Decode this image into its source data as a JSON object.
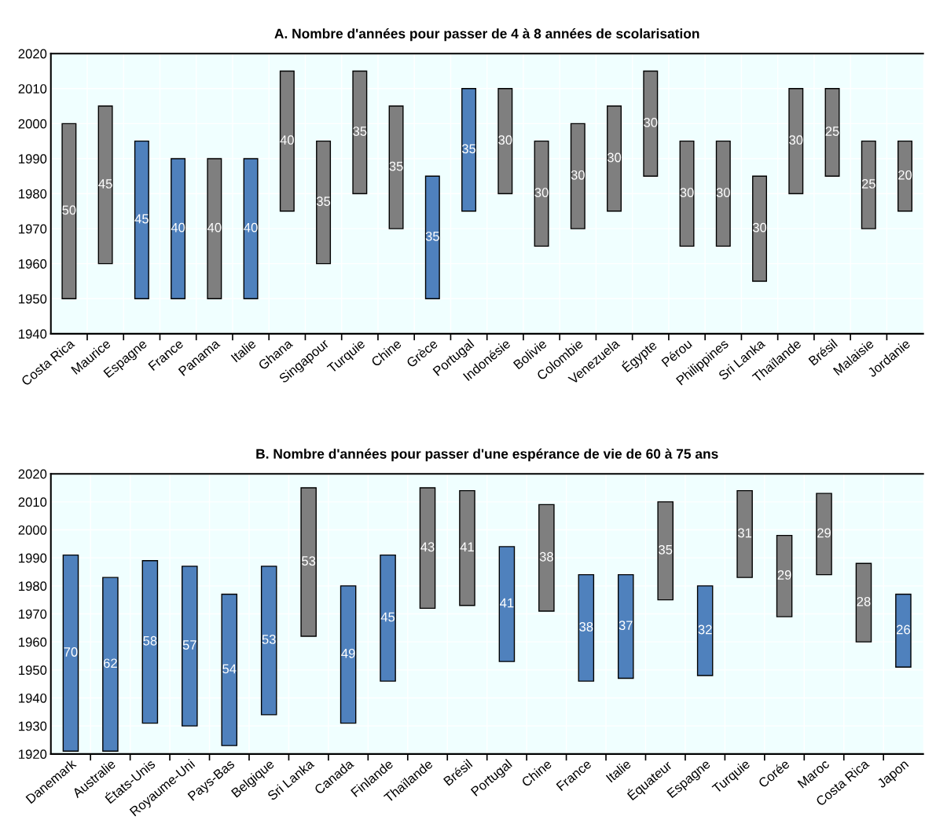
{
  "chart_data": [
    {
      "type": "bar",
      "title": "A. Nombre d'années pour passer de 4 à 8 années de scolarisation",
      "categories": [
        "Costa Rica",
        "Maurice",
        "Espagne",
        "France",
        "Panama",
        "Italie",
        "Ghana",
        "Singapour",
        "Turquie",
        "Chine",
        "Grèce",
        "Portugal",
        "Indonésie",
        "Bolivie",
        "Colombie",
        "Venezuela",
        "Égypte",
        "Pérou",
        "Philippines",
        "Sri Lanka",
        "Thaïlande",
        "Brésil",
        "Malaisie",
        "Jordanie"
      ],
      "base": [
        1950,
        1960,
        1950,
        1950,
        1950,
        1950,
        1975,
        1960,
        1980,
        1970,
        1950,
        1975,
        1980,
        1965,
        1970,
        1975,
        1985,
        1965,
        1965,
        1955,
        1980,
        1985,
        1970,
        1975
      ],
      "values": [
        50,
        45,
        45,
        40,
        40,
        40,
        40,
        35,
        35,
        35,
        35,
        35,
        30,
        30,
        30,
        30,
        30,
        30,
        30,
        30,
        30,
        25,
        25,
        20
      ],
      "colors": [
        "#7f7f7f",
        "#7f7f7f",
        "#4f81bd",
        "#4f81bd",
        "#7f7f7f",
        "#4f81bd",
        "#7f7f7f",
        "#7f7f7f",
        "#7f7f7f",
        "#7f7f7f",
        "#4f81bd",
        "#4f81bd",
        "#7f7f7f",
        "#7f7f7f",
        "#7f7f7f",
        "#7f7f7f",
        "#7f7f7f",
        "#7f7f7f",
        "#7f7f7f",
        "#7f7f7f",
        "#7f7f7f",
        "#7f7f7f",
        "#7f7f7f",
        "#7f7f7f"
      ],
      "ylim": [
        1940,
        2020
      ],
      "yticks": [
        1940,
        1950,
        1960,
        1970,
        1980,
        1990,
        2000,
        2010,
        2020
      ],
      "grid": true,
      "data_labels": true
    },
    {
      "type": "bar",
      "title": "B. Nombre d'années pour passer d'une espérance de vie de 60 à 75 ans",
      "categories": [
        "Danemark",
        "Australie",
        "États-Unis",
        "Royaume-Uni",
        "Pays-Bas",
        "Belgique",
        "Sri Lanka",
        "Canada",
        "Finlande",
        "Thaïlande",
        "Brésil",
        "Portugal",
        "Chine",
        "France",
        "Italie",
        "Équateur",
        "Espagne",
        "Turquie",
        "Corée",
        "Maroc",
        "Costa Rica",
        "Japon"
      ],
      "base": [
        1921,
        1921,
        1931,
        1930,
        1923,
        1934,
        1962,
        1931,
        1946,
        1972,
        1973,
        1953,
        1971,
        1946,
        1947,
        1975,
        1948,
        1983,
        1969,
        1984,
        1960,
        1951
      ],
      "values": [
        70,
        62,
        58,
        57,
        54,
        53,
        53,
        49,
        45,
        43,
        41,
        41,
        38,
        38,
        37,
        35,
        32,
        31,
        29,
        29,
        28,
        26
      ],
      "colors": [
        "#4f81bd",
        "#4f81bd",
        "#4f81bd",
        "#4f81bd",
        "#4f81bd",
        "#4f81bd",
        "#7f7f7f",
        "#4f81bd",
        "#4f81bd",
        "#7f7f7f",
        "#7f7f7f",
        "#4f81bd",
        "#7f7f7f",
        "#4f81bd",
        "#4f81bd",
        "#7f7f7f",
        "#4f81bd",
        "#7f7f7f",
        "#7f7f7f",
        "#7f7f7f",
        "#7f7f7f",
        "#4f81bd"
      ],
      "ylim": [
        1920,
        2020
      ],
      "yticks": [
        1920,
        1930,
        1940,
        1950,
        1960,
        1970,
        1980,
        1990,
        2000,
        2010,
        2020
      ],
      "grid": true,
      "data_labels": true
    }
  ]
}
